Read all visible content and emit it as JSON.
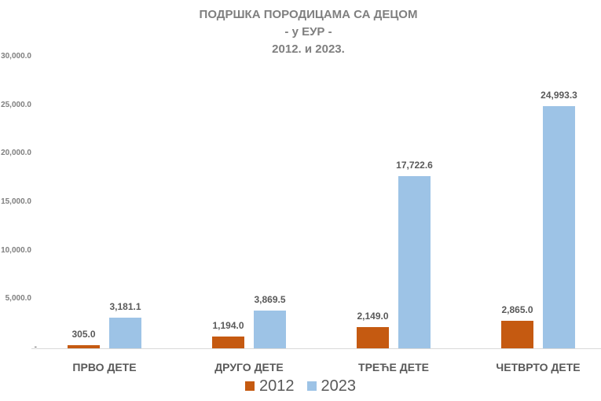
{
  "chart_data": {
    "type": "bar",
    "title": "ПОДРШКА ПОРОДИЦАМА СА ДЕЦОМ",
    "subtitle": [
      "- у ЕУР -",
      "2012. и 2023."
    ],
    "xlabel": "",
    "ylabel": "",
    "categories": [
      "ПРВО ДЕТЕ",
      "ДРУГО ДЕТЕ",
      "ТРЕЋЕ ДЕТЕ",
      "ЧЕТВРТО ДЕТЕ"
    ],
    "series": [
      {
        "name": "2012",
        "color": "#c55a11",
        "values": [
          305.0,
          1194.0,
          2149.0,
          2865.0
        ],
        "labels": [
          "305.0",
          "1,194.0",
          "2,149.0",
          "2,865.0"
        ]
      },
      {
        "name": "2023",
        "color": "#9dc3e6",
        "values": [
          3181.1,
          3869.5,
          17722.6,
          24993.3
        ],
        "labels": [
          "3,181.1",
          "3,869.5",
          "17,722.6",
          "24,993.3"
        ]
      }
    ],
    "ylim": [
      0,
      30000
    ],
    "yticks": [
      "-",
      "5,000.0",
      "10,000.0",
      "15,000.0",
      "20,000.0",
      "25,000.0",
      "30,000.0"
    ],
    "grid": false,
    "legend_position": "bottom"
  },
  "title": {
    "line1": "ПОДРШКА ПОРОДИЦАМА СА ДЕЦОМ",
    "line2": "- у ЕУР -",
    "line3": "2012. и 2023."
  },
  "legend": [
    "2012",
    "2023"
  ]
}
